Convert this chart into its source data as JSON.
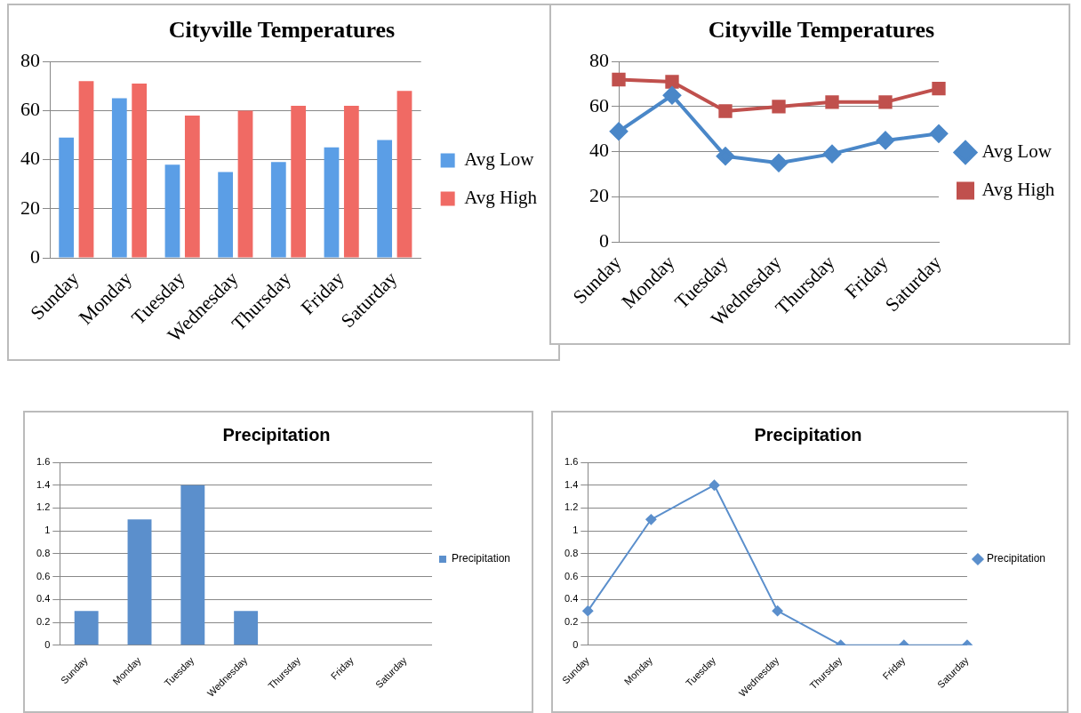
{
  "chart_data": [
    {
      "type": "bar",
      "title": "Cityville Temperatures",
      "categories": [
        "Sunday",
        "Monday",
        "Tuesday",
        "Wednesday",
        "Thursday",
        "Friday",
        "Saturday"
      ],
      "series": [
        {
          "name": "Avg Low",
          "color": "#5b9ee6",
          "values": [
            49,
            65,
            38,
            35,
            39,
            45,
            48
          ]
        },
        {
          "name": "Avg High",
          "color": "#f06a64",
          "values": [
            72,
            71,
            58,
            60,
            62,
            62,
            68
          ]
        }
      ],
      "ylim": [
        0,
        80
      ],
      "yticks": [
        0,
        20,
        40,
        60,
        80
      ],
      "grid": "y",
      "legend": "right"
    },
    {
      "type": "line",
      "title": "Cityville Temperatures",
      "categories": [
        "Sunday",
        "Monday",
        "Tuesday",
        "Wednesday",
        "Thursday",
        "Friday",
        "Saturday"
      ],
      "series": [
        {
          "name": "Avg Low",
          "color": "#4a87c8",
          "values": [
            49,
            65,
            38,
            35,
            39,
            45,
            48
          ],
          "marker": "diamond"
        },
        {
          "name": "Avg High",
          "color": "#c0504d",
          "values": [
            72,
            71,
            58,
            60,
            62,
            62,
            68
          ],
          "marker": "square"
        }
      ],
      "ylim": [
        0,
        80
      ],
      "yticks": [
        0,
        20,
        40,
        60,
        80
      ],
      "grid": "y",
      "legend": "right",
      "line_style": "solid"
    },
    {
      "type": "bar",
      "title": "Precipitation",
      "categories": [
        "Sunday",
        "Monday",
        "Tuesday",
        "Wednesday",
        "Thursday",
        "Friday",
        "Saturday"
      ],
      "series": [
        {
          "name": "Precipitation",
          "color": "#5b8fcc",
          "values": [
            0.3,
            1.1,
            1.4,
            0.3,
            0,
            0,
            0
          ]
        }
      ],
      "ylim": [
        0,
        1.6
      ],
      "yticks": [
        0,
        0.2,
        0.4,
        0.6,
        0.8,
        1,
        1.2,
        1.4,
        1.6
      ],
      "grid": "y",
      "legend": "right"
    },
    {
      "type": "line",
      "title": "Precipitation",
      "categories": [
        "Sunday",
        "Monday",
        "Tuesday",
        "Wednesday",
        "Thursday",
        "Friday",
        "Saturday"
      ],
      "series": [
        {
          "name": "Precipitation",
          "color": "#5b8fcc",
          "values": [
            0.3,
            1.1,
            1.4,
            0.3,
            0,
            0,
            0
          ]
        }
      ],
      "ylim": [
        0,
        1.6
      ],
      "yticks": [
        0,
        0.2,
        0.4,
        0.6,
        0.8,
        1,
        1.2,
        1.4,
        1.6
      ],
      "grid": "y",
      "legend": "right",
      "marker": "diamond",
      "line_style": "solid"
    }
  ]
}
